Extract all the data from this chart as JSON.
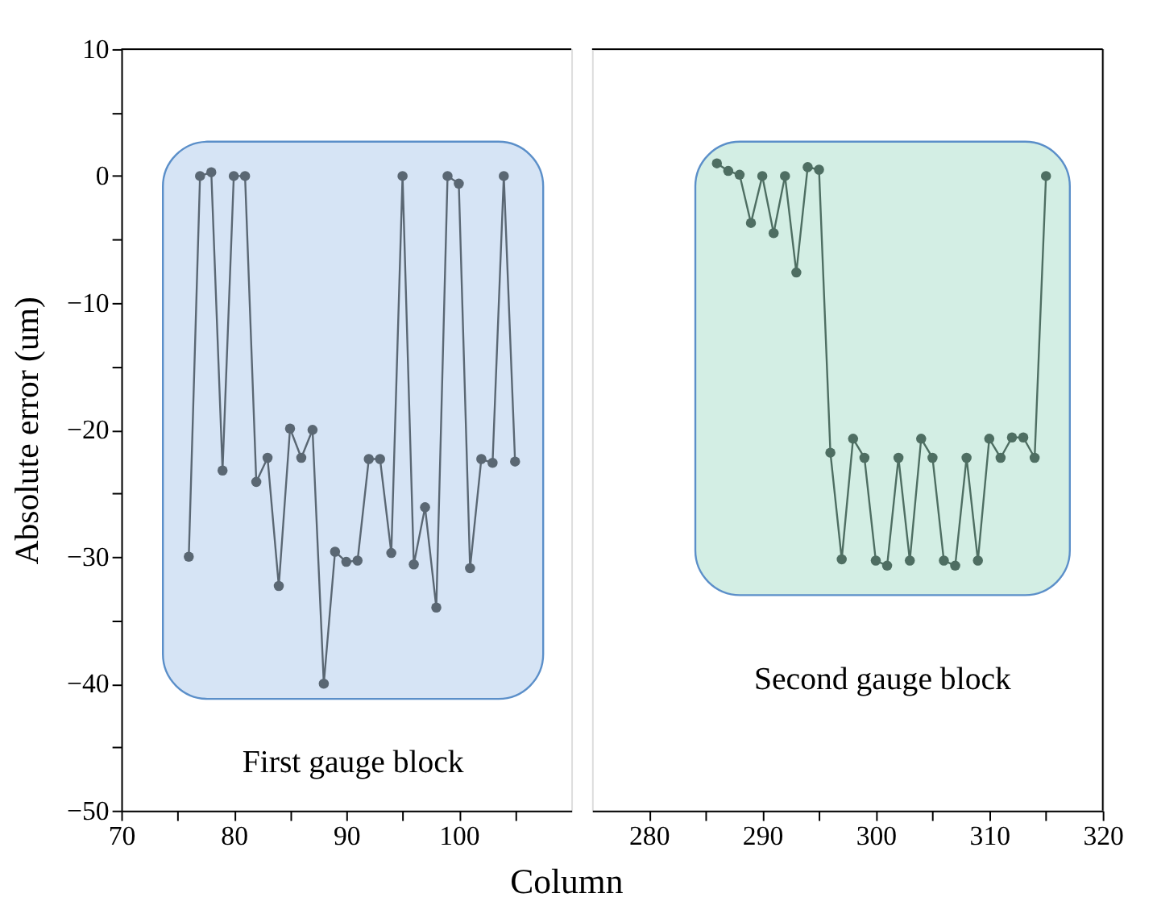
{
  "chart_data": [
    {
      "type": "line",
      "ylabel": "Absolute error (um)",
      "xlabel": "Column",
      "marker": "circle",
      "grid": false,
      "xlim": [
        70,
        110
      ],
      "xticks": [
        70,
        {
          "value": 75,
          "label": null
        },
        80,
        {
          "value": 85,
          "label": null
        },
        90,
        {
          "value": 95,
          "label": null
        },
        100,
        {
          "value": 105,
          "label": null
        }
      ],
      "ylim": [
        -50,
        10
      ],
      "yticks": [
        -50,
        {
          "value": -45,
          "label": null
        },
        -40,
        {
          "value": -35,
          "label": null
        },
        -30,
        {
          "value": -25,
          "label": null
        },
        -20,
        {
          "value": -15,
          "label": null
        },
        -10,
        {
          "value": -5,
          "label": null
        },
        0,
        {
          "value": 5,
          "label": null
        },
        10
      ],
      "bands": [
        {
          "axis": "x",
          "from": 73.7,
          "to": 107.5,
          "label": "First gauge block",
          "color": "#d6e4f5"
        }
      ],
      "series": [
        {
          "color": "#5a6773",
          "x": [
            76,
            77,
            78,
            79,
            80,
            81,
            82,
            83,
            84,
            85,
            86,
            87,
            88,
            89,
            90,
            91,
            92,
            93,
            94,
            95,
            96,
            97,
            98,
            99,
            100,
            101,
            102,
            103,
            104,
            105
          ],
          "values": [
            -30,
            0,
            0.3,
            -23.2,
            0,
            0,
            -24.1,
            -22.2,
            -32.3,
            -19.9,
            -22.2,
            -20,
            -40,
            -29.6,
            -30.4,
            -30.3,
            -22.3,
            -22.3,
            -29.7,
            0,
            -30.6,
            -26.1,
            -34,
            0,
            -0.6,
            -30.9,
            -22.3,
            -22.6,
            0,
            -22.5
          ]
        }
      ]
    },
    {
      "type": "line",
      "marker": "circle",
      "grid": false,
      "tick_labels": "x",
      "xlim": [
        275,
        320
      ],
      "xticks": [
        280,
        {
          "value": 285,
          "label": null
        },
        290,
        {
          "value": 295,
          "label": null
        },
        300,
        {
          "value": 305,
          "label": null
        },
        310,
        {
          "value": 315,
          "label": null
        },
        320
      ],
      "ylim": [
        -50,
        10
      ],
      "bands": [
        {
          "axis": "x",
          "from": 284.1,
          "to": 317.1,
          "label": "Second gauge block",
          "color": "#d3eee4"
        }
      ],
      "series": [
        {
          "color": "#4e6e62",
          "x": [
            286,
            287,
            288,
            289,
            290,
            291,
            292,
            293,
            294,
            295,
            296,
            297,
            298,
            299,
            300,
            301,
            302,
            303,
            304,
            305,
            306,
            307,
            308,
            309,
            310,
            311,
            312,
            313,
            314,
            315
          ],
          "values": [
            1.0,
            0.4,
            0.1,
            -3.7,
            0,
            -4.5,
            0,
            -7.6,
            0.7,
            0.5,
            -21.8,
            -30.2,
            -20.7,
            -22.2,
            -30.3,
            -30.7,
            -22.2,
            -30.3,
            -20.7,
            -22.2,
            -30.3,
            -30.7,
            -22.2,
            -30.3,
            -20.7,
            -22.2,
            -20.6,
            -20.6,
            -22.2,
            0
          ]
        }
      ]
    }
  ]
}
